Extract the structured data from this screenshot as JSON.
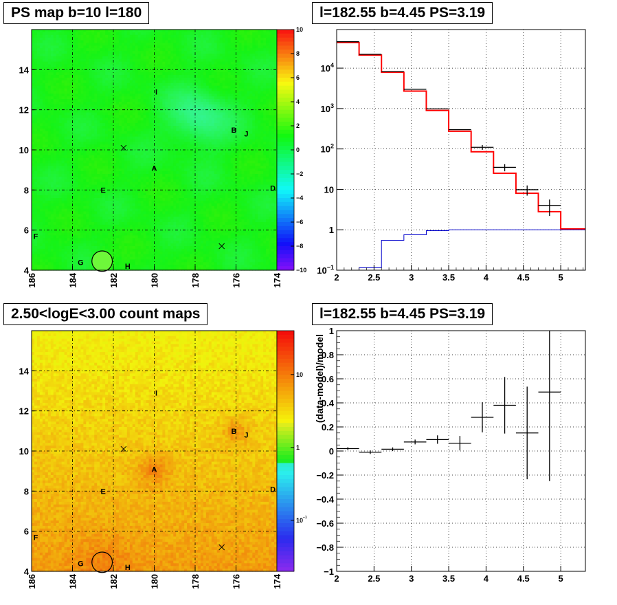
{
  "chart_data": [
    {
      "type": "heatmap",
      "title": "PS map b=10 l=180",
      "x_ticks": [
        "186",
        "184",
        "182",
        "180",
        "178",
        "176",
        "174"
      ],
      "y_ticks": [
        "4",
        "6",
        "8",
        "10",
        "12",
        "14"
      ],
      "xlim": [
        186,
        174
      ],
      "ylim": [
        4,
        16
      ],
      "colorbar": {
        "scale": "linear",
        "min": -10,
        "max": 10,
        "ticks": [
          "10",
          "8",
          "6",
          "4",
          "2",
          "0",
          "−2",
          "−4",
          "−6",
          "−8",
          "−10"
        ]
      },
      "grid": true,
      "sources": [
        {
          "label": "I",
          "l": 179.9,
          "b": 12.9
        },
        {
          "label": "B",
          "l": 176.1,
          "b": 11.0
        },
        {
          "label": "J",
          "l": 175.5,
          "b": 10.8
        },
        {
          "label": "A",
          "l": 180.0,
          "b": 9.1
        },
        {
          "label": "E",
          "l": 182.5,
          "b": 8.0
        },
        {
          "label": "D",
          "l": 174.2,
          "b": 8.1
        },
        {
          "label": "F",
          "l": 185.8,
          "b": 5.7
        },
        {
          "label": "G",
          "l": 183.6,
          "b": 4.4
        },
        {
          "label": "H",
          "l": 181.3,
          "b": 4.2
        }
      ],
      "cross_markers": [
        {
          "l": 181.5,
          "b": 10.1
        },
        {
          "l": 176.7,
          "b": 5.2
        }
      ],
      "circle": {
        "l": 182.55,
        "b": 4.45,
        "r_deg": 0.5
      },
      "colors": {
        "field": "#22f530",
        "hotspot": "#5cf59a",
        "circle_fill": "#6ef73a"
      }
    },
    {
      "type": "line",
      "title": "l=182.55 b=4.45 PS=3.19",
      "y_scale": "log",
      "xlim": [
        2,
        5.33
      ],
      "ylim": [
        0.1,
        90000
      ],
      "x_ticks": [
        "2",
        "2.5",
        "3",
        "3.5",
        "4",
        "4.5",
        "5"
      ],
      "y_ticks": [
        "10^-1",
        "1",
        "10",
        "10^2",
        "10^3",
        "10^4"
      ],
      "grid": true,
      "bin_edges": [
        2.0,
        2.3,
        2.6,
        2.9,
        3.2,
        3.5,
        3.8,
        4.1,
        4.4,
        4.7,
        5.0,
        5.33
      ],
      "series": [
        {
          "name": "",
          "style": "points",
          "color": "#000000",
          "values": [
            45000,
            22000,
            8200,
            3000,
            980,
            300,
            110,
            35,
            9.8,
            4.0,
            null
          ],
          "err_low": [
            null,
            null,
            null,
            null,
            null,
            null,
            95,
            28,
            7.0,
            2.2,
            null
          ],
          "err_high": [
            null,
            null,
            null,
            null,
            null,
            null,
            125,
            42,
            12.5,
            5.6,
            null
          ]
        },
        {
          "name": "",
          "style": "step",
          "color": "#ff0000",
          "values": [
            43000,
            21000,
            7900,
            2700,
            900,
            275,
            85,
            25,
            8.0,
            2.8,
            1.05
          ]
        },
        {
          "name": "",
          "style": "step",
          "color": "#0000cc",
          "values": [
            0.1,
            0.115,
            0.55,
            0.75,
            0.95,
            1.0,
            1.0,
            1.0,
            1.0,
            1.0,
            1.0
          ]
        }
      ]
    },
    {
      "type": "heatmap",
      "title": "2.50<logE<3.00 count maps",
      "x_ticks": [
        "186",
        "184",
        "182",
        "180",
        "178",
        "176",
        "174"
      ],
      "y_ticks": [
        "4",
        "6",
        "8",
        "10",
        "12",
        "14"
      ],
      "xlim": [
        186,
        174
      ],
      "ylim": [
        4,
        16
      ],
      "colorbar": {
        "scale": "log",
        "min": 0.02,
        "max": 40,
        "ticks": [
          {
            "label": "10",
            "value": 10
          },
          {
            "label": "1",
            "value": 1
          },
          {
            "label": "10^-1",
            "value": 0.1
          }
        ]
      },
      "grid": true,
      "sources": [
        {
          "label": "I",
          "l": 179.9,
          "b": 12.9
        },
        {
          "label": "B",
          "l": 176.1,
          "b": 11.0
        },
        {
          "label": "J",
          "l": 175.5,
          "b": 10.8
        },
        {
          "label": "A",
          "l": 180.0,
          "b": 9.1
        },
        {
          "label": "E",
          "l": 182.5,
          "b": 8.0
        },
        {
          "label": "D",
          "l": 174.2,
          "b": 8.1
        },
        {
          "label": "F",
          "l": 185.8,
          "b": 5.7
        },
        {
          "label": "G",
          "l": 183.6,
          "b": 4.4
        },
        {
          "label": "H",
          "l": 181.3,
          "b": 4.2
        }
      ],
      "cross_markers": [
        {
          "l": 181.5,
          "b": 10.1
        },
        {
          "l": 176.7,
          "b": 5.2
        }
      ],
      "circle": {
        "l": 182.55,
        "b": 4.45,
        "r_deg": 0.5
      },
      "colors": {
        "low": "#e8f020",
        "high": "#ee3a10"
      }
    },
    {
      "type": "scatter",
      "title": "l=182.55 b=4.45 PS=3.19",
      "ylabel": "(data-model)/model",
      "xlim": [
        2,
        5.33
      ],
      "ylim": [
        -1,
        1
      ],
      "x_ticks": [
        "2",
        "2.5",
        "3",
        "3.5",
        "4",
        "4.5",
        "5"
      ],
      "y_ticks": [
        "1",
        "0.8",
        "0.6",
        "0.4",
        "0.2",
        "0",
        "−0.2",
        "−0.4",
        "−0.6",
        "−0.8",
        "−1"
      ],
      "grid": true,
      "points": [
        {
          "x": 2.15,
          "y": 0.02,
          "xerr": 0.15,
          "yerr": 0.012
        },
        {
          "x": 2.45,
          "y": -0.01,
          "xerr": 0.15,
          "yerr": 0.015
        },
        {
          "x": 2.75,
          "y": 0.015,
          "xerr": 0.15,
          "yerr": 0.015
        },
        {
          "x": 3.05,
          "y": 0.075,
          "xerr": 0.15,
          "yerr": 0.02
        },
        {
          "x": 3.35,
          "y": 0.095,
          "xerr": 0.15,
          "yerr": 0.035
        },
        {
          "x": 3.65,
          "y": 0.065,
          "xerr": 0.15,
          "yerr": 0.06
        },
        {
          "x": 3.95,
          "y": 0.28,
          "xerr": 0.15,
          "yerr": 0.125
        },
        {
          "x": 4.25,
          "y": 0.38,
          "xerr": 0.15,
          "yerr": 0.235
        },
        {
          "x": 4.55,
          "y": 0.15,
          "xerr": 0.15,
          "yerr": 0.385
        },
        {
          "x": 4.85,
          "y": 0.49,
          "xerr": 0.15,
          "yerr_low": 0.74,
          "yerr_high": 0.51
        }
      ]
    }
  ]
}
